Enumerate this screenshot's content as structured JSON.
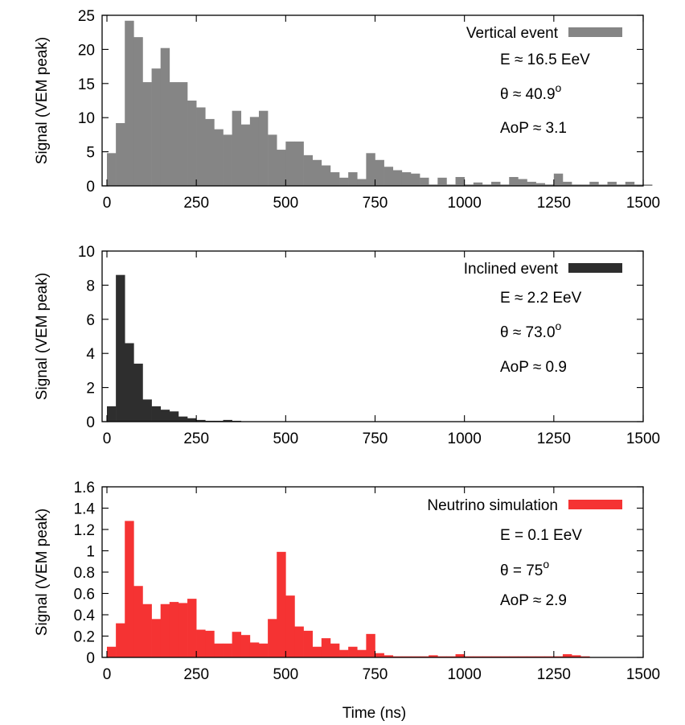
{
  "chart_data": [
    {
      "type": "bar",
      "legend": "Vertical event",
      "color": "#858585",
      "ylabel": "Signal (VEM peak)",
      "xlabel": "",
      "xlim": [
        0,
        1500
      ],
      "ylim": [
        0,
        25
      ],
      "xticks": [
        "0",
        "250",
        "500",
        "750",
        "1000",
        "1250",
        "1500"
      ],
      "yticks": [
        "0",
        "5",
        "10",
        "15",
        "20",
        "25"
      ],
      "bin_width": 25,
      "values": [
        4.8,
        9.2,
        24.2,
        21.8,
        15.2,
        17.2,
        20.2,
        15.2,
        15.2,
        12.5,
        11.5,
        9.8,
        8.3,
        7.5,
        11.0,
        9.0,
        10.1,
        11.0,
        7.5,
        5.3,
        6.5,
        6.5,
        4.5,
        3.8,
        3.0,
        2.0,
        1.2,
        2.0,
        1.0,
        4.8,
        3.8,
        2.8,
        2.3,
        2.0,
        1.8,
        1.2,
        0.2,
        1.2,
        0.2,
        1.3,
        0.2,
        0.5,
        0.2,
        0.6,
        0.2,
        1.3,
        1.0,
        0.6,
        0.4,
        0.2,
        1.8,
        0.6,
        0.2,
        0.2,
        0.6,
        0.2,
        0.6,
        0.2,
        0.6,
        0.2,
        0.2
      ],
      "annotations": [
        "E ≈ 16.5 EeV",
        "θ ≈ 40.9°",
        "AoP ≈ 3.1"
      ]
    },
    {
      "type": "bar",
      "legend": "Inclined event",
      "color": "#2e2e2e",
      "ylabel": "Signal (VEM peak)",
      "xlabel": "",
      "xlim": [
        0,
        1500
      ],
      "ylim": [
        0,
        10
      ],
      "xticks": [
        "0",
        "250",
        "500",
        "750",
        "1000",
        "1250",
        "1500"
      ],
      "yticks": [
        "0",
        "2",
        "4",
        "6",
        "8",
        "10"
      ],
      "bin_width": 25,
      "values": [
        0.9,
        8.6,
        4.6,
        3.4,
        1.3,
        0.9,
        0.7,
        0.6,
        0.3,
        0.2,
        0.1,
        0.05,
        0.05,
        0.1,
        0.05,
        0.02
      ],
      "annotations": [
        "E ≈ 2.2 EeV",
        "θ ≈ 73.0°",
        "AoP ≈ 0.9"
      ]
    },
    {
      "type": "bar",
      "legend": "Neutrino simulation",
      "color": "#f53333",
      "ylabel": "Signal (VEM peak)",
      "xlabel": "Time (ns)",
      "xlim": [
        0,
        1500
      ],
      "ylim": [
        0,
        1.6
      ],
      "xticks": [
        "0",
        "250",
        "500",
        "750",
        "1000",
        "1250",
        "1500"
      ],
      "yticks": [
        "0",
        "0.2",
        "0.4",
        "0.6",
        "0.8",
        "1",
        "1.2",
        "1.4",
        "1.6"
      ],
      "bin_width": 25,
      "values": [
        0.1,
        0.32,
        1.28,
        0.67,
        0.5,
        0.36,
        0.5,
        0.52,
        0.51,
        0.55,
        0.26,
        0.25,
        0.13,
        0.13,
        0.24,
        0.21,
        0.14,
        0.13,
        0.36,
        0.99,
        0.58,
        0.29,
        0.25,
        0.1,
        0.18,
        0.13,
        0.07,
        0.1,
        0.07,
        0.22,
        0.04,
        0.02,
        0.01,
        0.01,
        0.01,
        0.01,
        0.02,
        0.01,
        0.01,
        0.03,
        0.01,
        0.01,
        0.01,
        0.01,
        0.01,
        0.01,
        0.01,
        0.01,
        0.01,
        0.01,
        0.01,
        0.03,
        0.02,
        0.01
      ],
      "annotations": [
        "E = 0.1 EeV",
        "θ = 75°",
        "AoP ≈ 2.9"
      ]
    }
  ]
}
